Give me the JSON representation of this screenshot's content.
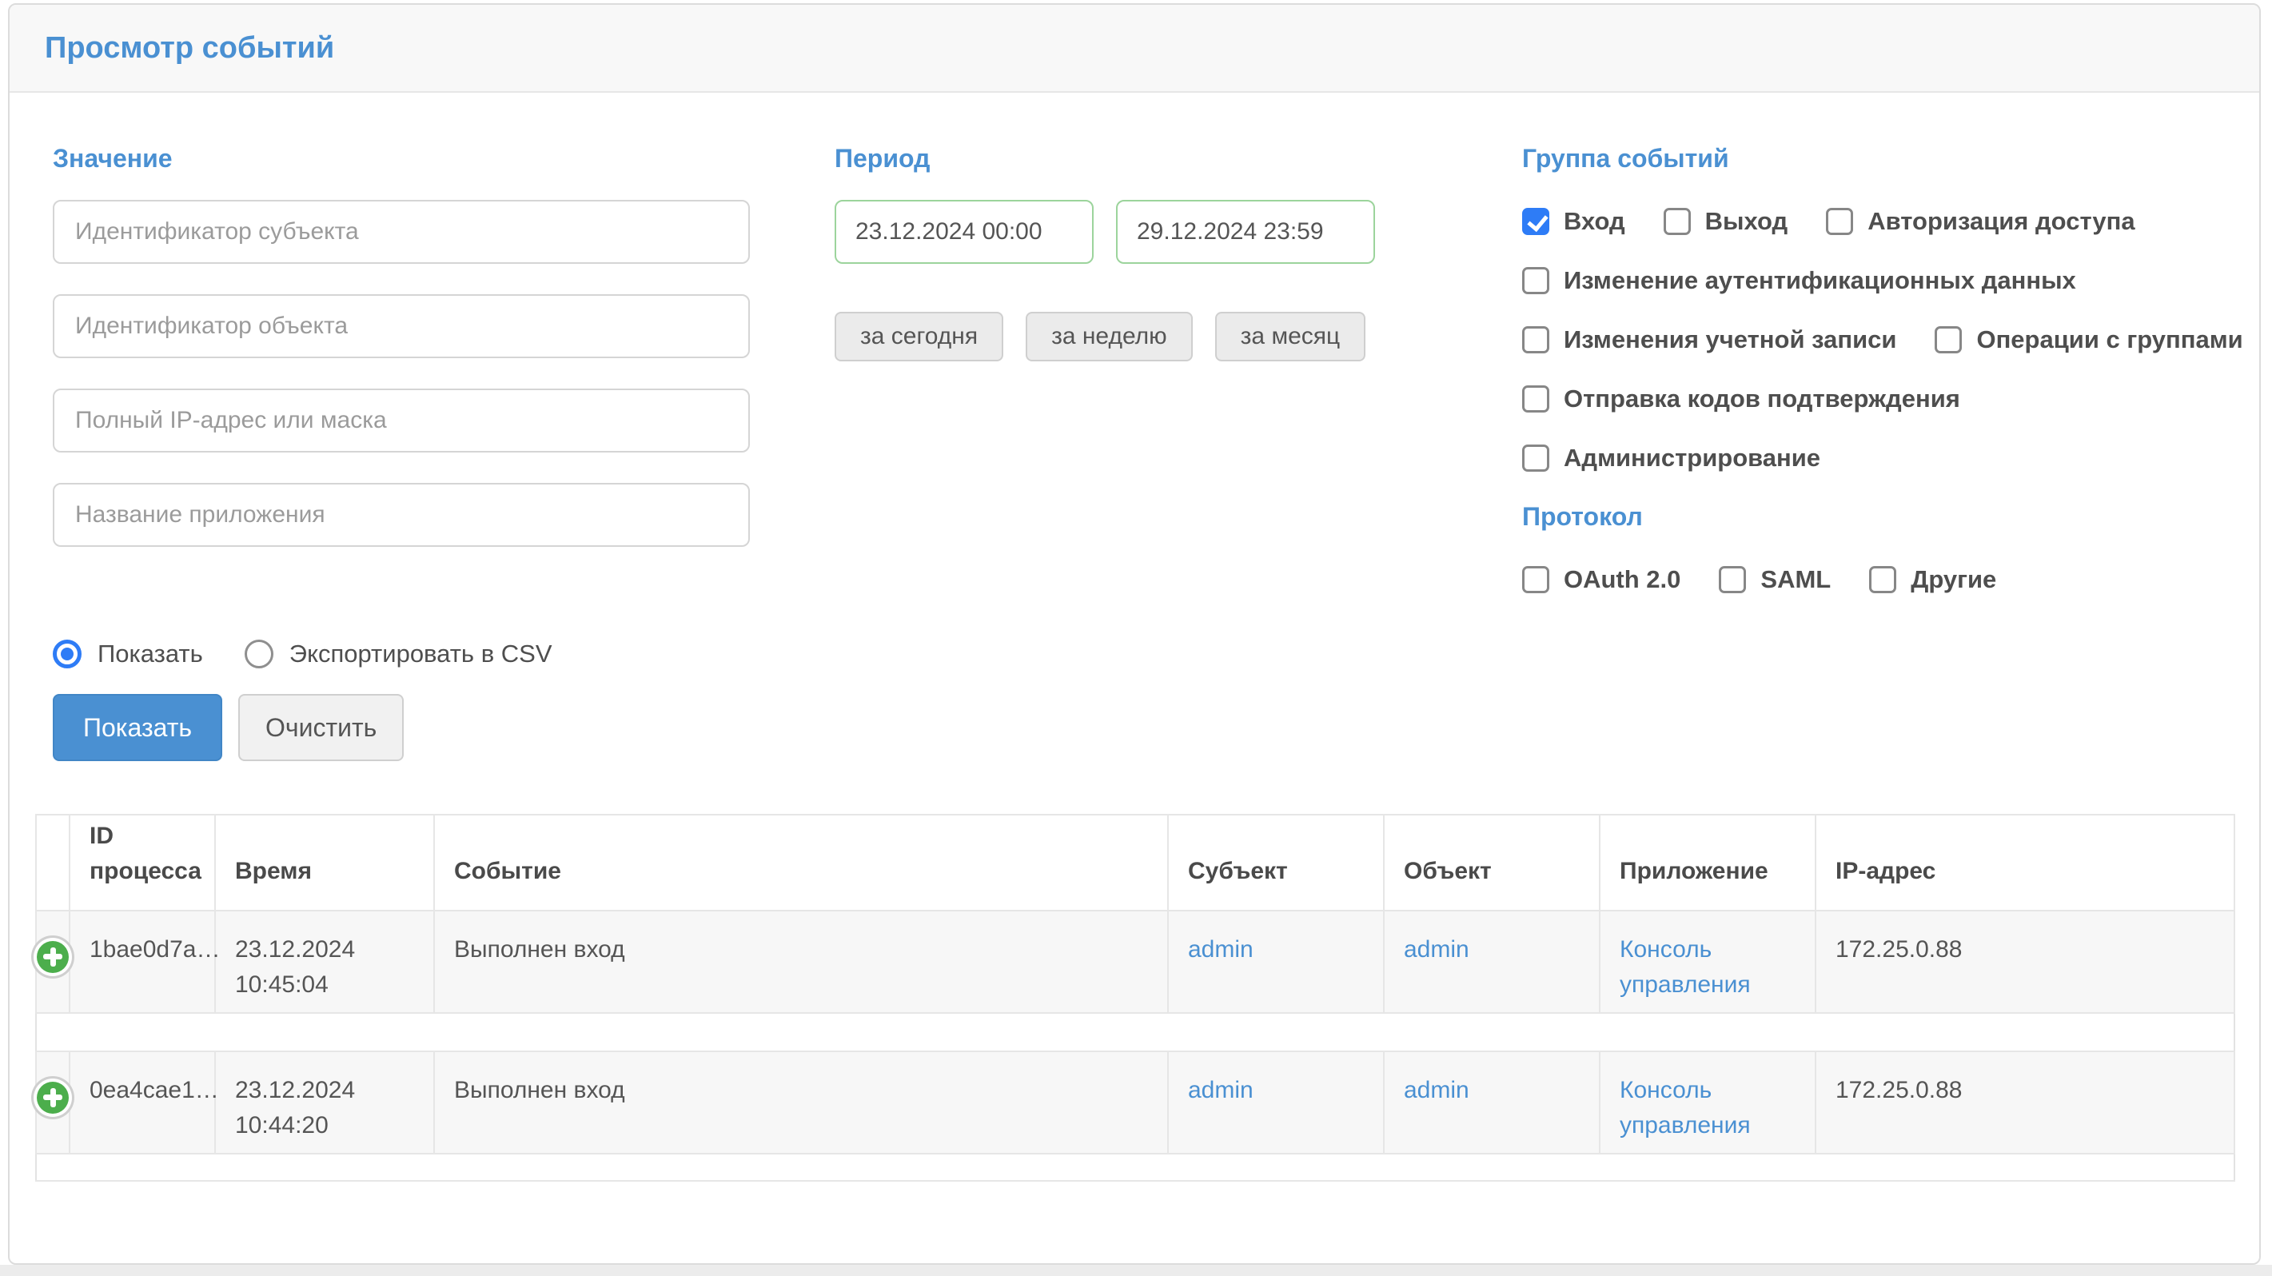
{
  "panel": {
    "title": "Просмотр событий"
  },
  "value_section": {
    "title": "Значение",
    "inputs": [
      {
        "placeholder": "Идентификатор субъекта"
      },
      {
        "placeholder": "Идентификатор объекта"
      },
      {
        "placeholder": "Полный IP-адрес или маска"
      },
      {
        "placeholder": "Название приложения"
      }
    ]
  },
  "period_section": {
    "title": "Период",
    "date_from": "23.12.2024 00:00",
    "date_to": "29.12.2024 23:59",
    "quick_ranges": [
      "за сегодня",
      "за неделю",
      "за месяц"
    ]
  },
  "event_groups": {
    "title": "Группа событий",
    "rows": [
      [
        {
          "label": "Вход",
          "checked": true
        },
        {
          "label": "Выход",
          "checked": false
        },
        {
          "label": "Авторизация доступа",
          "checked": false
        }
      ],
      [
        {
          "label": "Изменение аутентификационных данных",
          "checked": false
        }
      ],
      [
        {
          "label": "Изменения учетной записи",
          "checked": false
        },
        {
          "label": "Операции с группами",
          "checked": false
        }
      ],
      [
        {
          "label": "Отправка кодов подтверждения",
          "checked": false
        }
      ],
      [
        {
          "label": "Администрирование",
          "checked": false
        }
      ]
    ]
  },
  "protocol": {
    "title": "Протокол",
    "rows": [
      [
        {
          "label": "OAuth 2.0",
          "checked": false
        },
        {
          "label": "SAML",
          "checked": false
        },
        {
          "label": "Другие",
          "checked": false
        }
      ]
    ]
  },
  "output_mode": {
    "options": [
      {
        "label": "Показать",
        "selected": true
      },
      {
        "label": "Экспортировать в CSV",
        "selected": false
      }
    ]
  },
  "actions": {
    "show": "Показать",
    "clear": "Очистить"
  },
  "results_table": {
    "columns": [
      "",
      "ID процесса",
      "Время",
      "Событие",
      "Субъект",
      "Объект",
      "Приложение",
      "IP-адрес"
    ],
    "rows": [
      {
        "process_id": "1bae0d7a…",
        "time": "23.12.2024 10:45:04",
        "event": "Выполнен вход",
        "subject": "admin",
        "object": "admin",
        "application": "Консоль управления",
        "ip": "172.25.0.88"
      },
      {
        "process_id": "0ea4cae1…",
        "time": "23.12.2024 10:44:20",
        "event": "Выполнен вход",
        "subject": "admin",
        "object": "admin",
        "application": "Консоль управления",
        "ip": "172.25.0.88"
      }
    ]
  },
  "colors": {
    "accent_blue": "#4a90d2",
    "control_blue": "#2e7cf6",
    "link_blue": "#4a90d2",
    "success_green_border": "#9cd49c",
    "icon_green": "#4cae4c"
  }
}
